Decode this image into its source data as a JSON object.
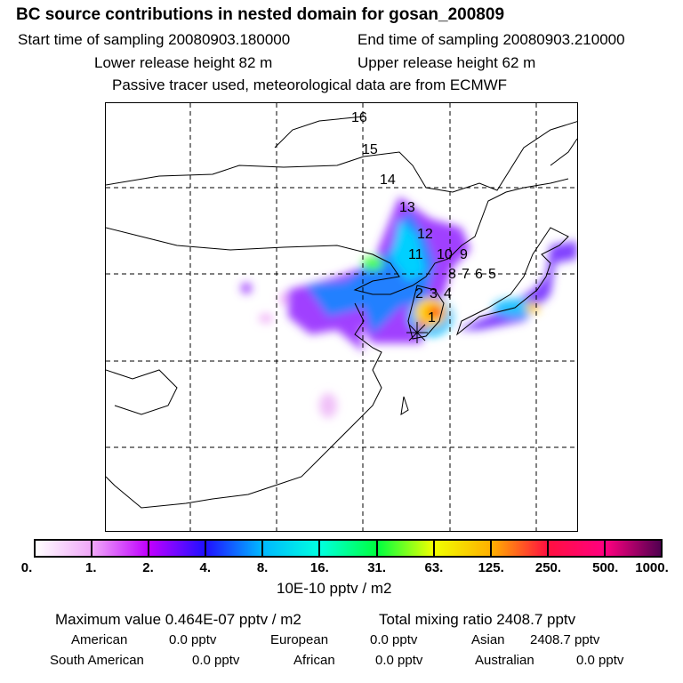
{
  "header": {
    "title": "BC  source contributions in nested domain for gosan_200809",
    "start_time": "Start time of sampling 20080903.180000",
    "end_time": "End time of sampling 20080903.210000",
    "lower_height": "Lower release height   82 m",
    "upper_height": "Upper release height   62 m",
    "note": "Passive tracer used, meteorological data are from ECMWF"
  },
  "map": {
    "trajectory_labels": [
      "1",
      "2",
      "3",
      "4",
      "5",
      "6",
      "7",
      "8",
      "9",
      "10",
      "11",
      "12",
      "13",
      "14",
      "15",
      "16"
    ]
  },
  "colorbar": {
    "labels": [
      "0.",
      "1.",
      "2.",
      "4.",
      "8.",
      "16.",
      "31.",
      "63.",
      "125.",
      "250.",
      "500.",
      "1000."
    ],
    "colors": [
      "#ffffff",
      "#f0a8f8",
      "#c000ff",
      "#2010ff",
      "#00b8ff",
      "#00ffe0",
      "#00ff40",
      "#f0ff00",
      "#ffb000",
      "#ff1040",
      "#ff0080",
      "#500050"
    ],
    "unit": "10E-10 pptv / m2"
  },
  "stats": {
    "max_label": "Maximum value  0.464E-07 pptv / m2",
    "total_label": "Total mixing ratio     2408.7 pptv",
    "regions": [
      {
        "name": "American",
        "value": "0.0 pptv"
      },
      {
        "name": "European",
        "value": "0.0 pptv"
      },
      {
        "name": "Asian",
        "value": "2408.7 pptv"
      },
      {
        "name": "South American",
        "value": "0.0 pptv"
      },
      {
        "name": "African",
        "value": "0.0 pptv"
      },
      {
        "name": "Australian",
        "value": "0.0 pptv"
      }
    ]
  }
}
